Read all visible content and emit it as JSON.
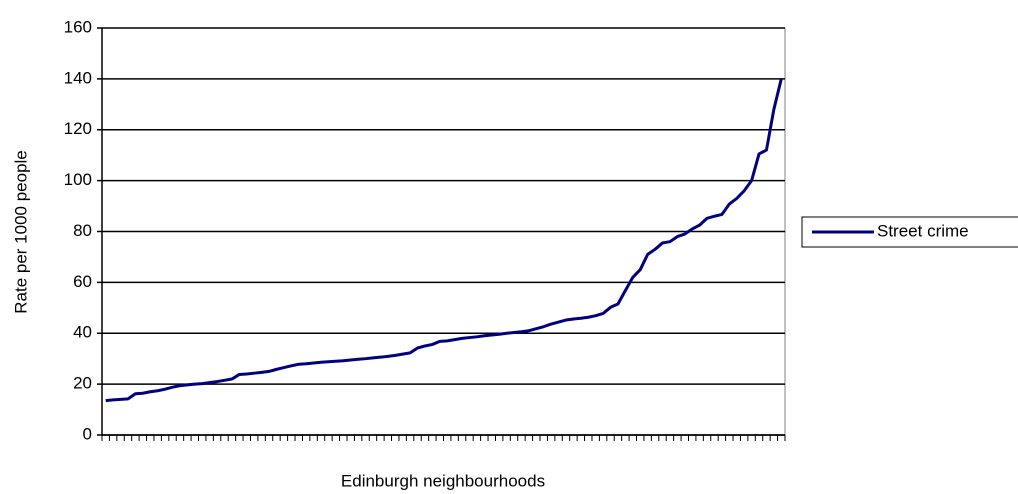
{
  "chart_data": {
    "type": "line",
    "xlabel": "Edinburgh neighbourhoods",
    "ylabel": "Rate per 1000 people",
    "categories": [
      null,
      null,
      null,
      null,
      null,
      null,
      null,
      null,
      null,
      null,
      null,
      null,
      null,
      null,
      null,
      null,
      null,
      null,
      null,
      null,
      null,
      null,
      null,
      null,
      null,
      null,
      null,
      null,
      null,
      null,
      null,
      null,
      null,
      null,
      null,
      null,
      null,
      null,
      null,
      null,
      null,
      null,
      null,
      null,
      null,
      null,
      null,
      null,
      null,
      null,
      null,
      null,
      null,
      null,
      null,
      null,
      null,
      null,
      null,
      null,
      null,
      null,
      null,
      null,
      null,
      null,
      null,
      null,
      null,
      null,
      null,
      null,
      null,
      null,
      null,
      null,
      null,
      null,
      null,
      null,
      null,
      null,
      null,
      null,
      null,
      null,
      null,
      null,
      null,
      null,
      null,
      null
    ],
    "series": [
      {
        "name": "Street crime",
        "color": "#000080",
        "values": [
          13.5,
          13.8,
          14.0,
          14.2,
          16.2,
          16.4,
          17.0,
          17.4,
          18.0,
          18.8,
          19.4,
          19.7,
          20.0,
          20.2,
          20.6,
          21.0,
          21.5,
          22.0,
          23.8,
          24.0,
          24.3,
          24.6,
          25.0,
          25.8,
          26.5,
          27.2,
          27.8,
          28.0,
          28.3,
          28.6,
          28.8,
          29.0,
          29.2,
          29.5,
          29.8,
          30.0,
          30.3,
          30.6,
          30.9,
          31.3,
          31.8,
          32.3,
          34.2,
          35.0,
          35.6,
          36.8,
          37.0,
          37.5,
          38.0,
          38.3,
          38.6,
          39.0,
          39.3,
          39.6,
          40.0,
          40.3,
          40.6,
          41.0,
          41.8,
          42.6,
          43.6,
          44.4,
          45.2,
          45.6,
          45.9,
          46.3,
          46.9,
          47.8,
          50.2,
          51.5,
          56.8,
          62.0,
          65.0,
          71.0,
          73.0,
          75.5,
          76.0,
          78.0,
          79.0,
          81.0,
          82.5,
          85.2,
          86.0,
          86.7,
          90.8,
          93.0,
          96.0,
          100.0,
          110.5,
          112.0,
          128.0,
          140.0
        ]
      }
    ],
    "ylim": [
      0,
      160
    ],
    "yticks": [
      0,
      20,
      40,
      60,
      80,
      100,
      120,
      140,
      160
    ],
    "grid": true,
    "legend": "right"
  }
}
